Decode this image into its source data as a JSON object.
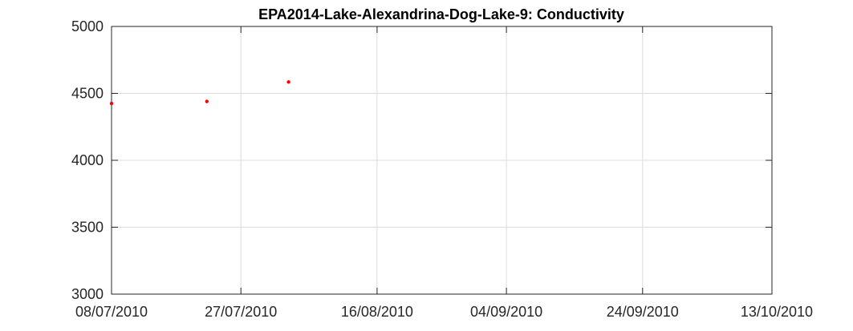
{
  "chart_data": {
    "type": "scatter",
    "title": "EPA2014-Lake-Alexandrina-Dog-Lake-9: Conductivity",
    "xlabel": "",
    "ylabel": "",
    "x_type": "date",
    "xlim": [
      "2010-07-08",
      "2010-10-13"
    ],
    "ylim": [
      3000,
      5000
    ],
    "x_ticks": [
      "08/07/2010",
      "27/07/2010",
      "16/08/2010",
      "04/09/2010",
      "24/09/2010",
      "13/10/2010"
    ],
    "y_ticks": [
      "3000",
      "3500",
      "4000",
      "4500",
      "5000"
    ],
    "grid": true,
    "legend": "none",
    "series": [
      {
        "color": "#ff0000",
        "points": [
          {
            "x": "2010-07-08",
            "y": 4425
          },
          {
            "x": "2010-07-22",
            "y": 4440
          },
          {
            "x": "2010-08-03",
            "y": 4585
          }
        ]
      }
    ]
  }
}
